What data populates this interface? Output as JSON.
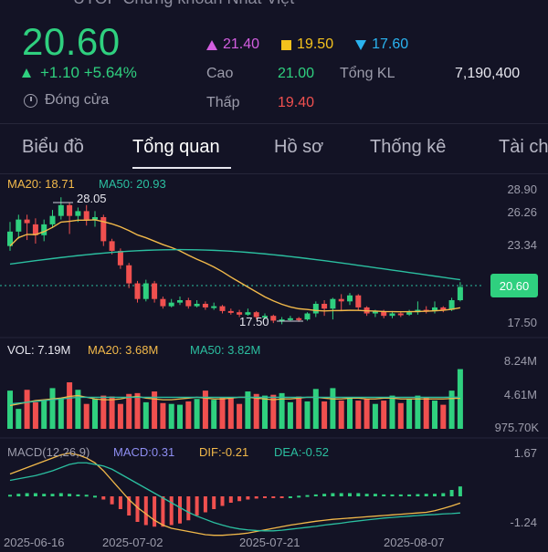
{
  "header": {
    "title_partial": "UTOP Chứng khoán Nhất Việt",
    "price": "20.60",
    "change": "+1.10 +5.64%",
    "status": "Đóng cửa",
    "ceiling": "21.40",
    "reference": "19.50",
    "floor": "17.60",
    "high_label": "Cao",
    "high": "21.00",
    "low_label": "Thấp",
    "low": "19.40",
    "volume_label": "Tổng KL",
    "volume": "7,190,400"
  },
  "tabs": [
    "Biểu đồ",
    "Tổng quan",
    "Hồ sơ",
    "Thống kê",
    "Tài ch"
  ],
  "active_tab": 1,
  "colors": {
    "up": "#2fd07f",
    "down": "#f0504f",
    "ma20": "#f2b94a",
    "ma50": "#2bbfa0",
    "purple": "#d35ee0",
    "yellow": "#f4c21d",
    "blue": "#2ab3f0"
  },
  "chart_data": {
    "type": "candlestick",
    "ma20_label": "MA20: 18.71",
    "ma50_label": "MA50: 20.93",
    "y_ticks": [
      "28.90",
      "26.26",
      "23.34",
      "20.60",
      "17.50"
    ],
    "price_badge": "20.60",
    "max_label": "28.05",
    "min_label": "17.50",
    "candles": [
      {
        "o": 24.0,
        "c": 25.2,
        "h": 26.0,
        "l": 23.6
      },
      {
        "o": 25.2,
        "c": 26.2,
        "h": 26.6,
        "l": 24.6
      },
      {
        "o": 26.2,
        "c": 25.9,
        "h": 26.6,
        "l": 24.5
      },
      {
        "o": 25.8,
        "c": 24.9,
        "h": 26.3,
        "l": 24.2
      },
      {
        "o": 24.9,
        "c": 25.8,
        "h": 26.2,
        "l": 24.4
      },
      {
        "o": 25.8,
        "c": 26.5,
        "h": 27.0,
        "l": 25.5
      },
      {
        "o": 26.5,
        "c": 27.4,
        "h": 28.05,
        "l": 26.2
      },
      {
        "o": 27.4,
        "c": 26.5,
        "h": 27.6,
        "l": 25.0
      },
      {
        "o": 26.5,
        "c": 26.9,
        "h": 27.2,
        "l": 26.0
      },
      {
        "o": 26.9,
        "c": 26.2,
        "h": 27.4,
        "l": 25.7
      },
      {
        "o": 26.2,
        "c": 26.4,
        "h": 26.9,
        "l": 25.6
      },
      {
        "o": 26.4,
        "c": 24.4,
        "h": 26.6,
        "l": 24.0
      },
      {
        "o": 24.4,
        "c": 23.6,
        "h": 24.6,
        "l": 23.3
      },
      {
        "o": 23.6,
        "c": 22.4,
        "h": 23.8,
        "l": 22.1
      },
      {
        "o": 22.4,
        "c": 20.9,
        "h": 22.6,
        "l": 20.5
      },
      {
        "o": 20.9,
        "c": 19.6,
        "h": 21.1,
        "l": 19.3
      },
      {
        "o": 19.6,
        "c": 20.9,
        "h": 21.2,
        "l": 19.4
      },
      {
        "o": 20.9,
        "c": 19.6,
        "h": 21.1,
        "l": 19.3
      },
      {
        "o": 19.6,
        "c": 19.0,
        "h": 19.8,
        "l": 18.8
      },
      {
        "o": 19.0,
        "c": 19.3,
        "h": 19.6,
        "l": 18.9
      },
      {
        "o": 19.3,
        "c": 19.5,
        "h": 19.8,
        "l": 19.1
      },
      {
        "o": 19.5,
        "c": 19.0,
        "h": 19.7,
        "l": 18.8
      },
      {
        "o": 19.0,
        "c": 19.2,
        "h": 19.5,
        "l": 18.9
      },
      {
        "o": 19.2,
        "c": 18.9,
        "h": 19.4,
        "l": 18.7
      },
      {
        "o": 18.9,
        "c": 19.0,
        "h": 19.3,
        "l": 18.7
      },
      {
        "o": 19.0,
        "c": 18.6,
        "h": 19.1,
        "l": 18.4
      },
      {
        "o": 18.6,
        "c": 18.5,
        "h": 18.8,
        "l": 18.3
      },
      {
        "o": 18.5,
        "c": 18.3,
        "h": 18.7,
        "l": 18.1
      },
      {
        "o": 18.3,
        "c": 18.5,
        "h": 18.8,
        "l": 18.2
      },
      {
        "o": 18.5,
        "c": 18.1,
        "h": 18.6,
        "l": 17.9
      },
      {
        "o": 18.1,
        "c": 18.2,
        "h": 18.4,
        "l": 17.9
      },
      {
        "o": 18.2,
        "c": 17.8,
        "h": 18.3,
        "l": 17.6
      },
      {
        "o": 17.8,
        "c": 17.9,
        "h": 18.1,
        "l": 17.5
      },
      {
        "o": 17.9,
        "c": 18.0,
        "h": 18.2,
        "l": 17.8
      },
      {
        "o": 18.0,
        "c": 17.9,
        "h": 18.1,
        "l": 17.7
      },
      {
        "o": 17.9,
        "c": 18.4,
        "h": 18.5,
        "l": 17.8
      },
      {
        "o": 18.4,
        "c": 19.2,
        "h": 19.4,
        "l": 18.1
      },
      {
        "o": 19.2,
        "c": 18.8,
        "h": 19.5,
        "l": 18.2
      },
      {
        "o": 18.8,
        "c": 19.6,
        "h": 19.7,
        "l": 17.9
      },
      {
        "o": 19.6,
        "c": 19.4,
        "h": 20.0,
        "l": 18.6
      },
      {
        "o": 19.4,
        "c": 19.9,
        "h": 20.1,
        "l": 19.1
      },
      {
        "o": 19.9,
        "c": 18.9,
        "h": 20.0,
        "l": 18.7
      },
      {
        "o": 18.9,
        "c": 18.4,
        "h": 19.0,
        "l": 18.2
      },
      {
        "o": 18.4,
        "c": 18.6,
        "h": 18.7,
        "l": 18.1
      },
      {
        "o": 18.6,
        "c": 18.2,
        "h": 18.7,
        "l": 18.0
      },
      {
        "o": 18.2,
        "c": 18.4,
        "h": 18.6,
        "l": 18.0
      },
      {
        "o": 18.4,
        "c": 18.3,
        "h": 18.6,
        "l": 18.1
      },
      {
        "o": 18.3,
        "c": 18.5,
        "h": 18.7,
        "l": 18.2
      },
      {
        "o": 18.5,
        "c": 18.7,
        "h": 19.4,
        "l": 18.3
      },
      {
        "o": 18.7,
        "c": 18.6,
        "h": 19.0,
        "l": 18.4
      },
      {
        "o": 18.6,
        "c": 18.9,
        "h": 19.4,
        "l": 18.4
      },
      {
        "o": 18.9,
        "c": 18.7,
        "h": 19.0,
        "l": 18.5
      },
      {
        "o": 18.7,
        "c": 19.5,
        "h": 19.7,
        "l": 18.6
      },
      {
        "o": 19.5,
        "c": 20.6,
        "h": 21.0,
        "l": 19.4
      }
    ],
    "volume": {
      "label_vol": "VOL: 7.19M",
      "label_ma20": "MA20: 3.68M",
      "label_ma50": "MA50: 3.82M",
      "ticks": [
        "8.24M",
        "4.61M",
        "975.70K"
      ],
      "values": [
        4.6,
        2.4,
        4.7,
        3.2,
        3.5,
        4.9,
        3.6,
        5.6,
        4.7,
        3.0,
        3.6,
        4.0,
        3.9,
        3.0,
        4.2,
        4.3,
        3.2,
        4.5,
        3.1,
        3.0,
        2.9,
        3.3,
        3.6,
        4.6,
        3.5,
        3.8,
        3.8,
        3.0,
        4.5,
        4.2,
        4.0,
        4.1,
        4.3,
        3.2,
        3.9,
        3.3,
        4.8,
        3.3,
        4.9,
        3.4,
        3.7,
        3.4,
        3.6,
        3.0,
        3.4,
        4.0,
        3.1,
        3.6,
        4.0,
        3.8,
        3.4,
        2.9,
        4.6,
        7.19
      ],
      "ma20": [
        2.8,
        3.0,
        3.2,
        3.4,
        3.5,
        3.6,
        3.7,
        3.9,
        4.0,
        3.8,
        3.6,
        3.5,
        3.5,
        3.6,
        3.8,
        3.9,
        3.7,
        3.6,
        3.5,
        3.5,
        3.6,
        3.7,
        3.8,
        3.7,
        3.6,
        3.6,
        3.7,
        3.8,
        3.8,
        3.7,
        3.6,
        3.5,
        3.6,
        3.6,
        3.7,
        3.8,
        3.8,
        3.7,
        3.6,
        3.6,
        3.7,
        3.7,
        3.6,
        3.6,
        3.7,
        3.7,
        3.6,
        3.6,
        3.6,
        3.6,
        3.6,
        3.6,
        3.65,
        3.68
      ],
      "ma50": [
        3.0,
        3.1,
        3.2,
        3.3,
        3.4,
        3.5,
        3.6,
        3.7,
        3.8,
        3.8,
        3.8,
        3.8,
        3.8,
        3.8,
        3.8,
        3.8,
        3.8,
        3.8,
        3.8,
        3.8,
        3.8,
        3.8,
        3.8,
        3.8,
        3.8,
        3.8,
        3.8,
        3.8,
        3.8,
        3.8,
        3.8,
        3.8,
        3.8,
        3.8,
        3.8,
        3.8,
        3.8,
        3.8,
        3.8,
        3.8,
        3.8,
        3.8,
        3.8,
        3.8,
        3.8,
        3.8,
        3.8,
        3.8,
        3.8,
        3.8,
        3.8,
        3.8,
        3.82,
        3.82
      ]
    },
    "macd": {
      "label": "MACD(12,26,9)",
      "label_macd": "MACD:0.31",
      "label_dif": "DIF:-0.21",
      "label_dea": "DEA:-0.52",
      "ticks": [
        "1.67",
        "-1.24"
      ],
      "dates": [
        "2025-06-16",
        "2025-07-02",
        "2025-07-21",
        "2025-08-07"
      ],
      "hist": [
        0.05,
        0.08,
        0.1,
        0.1,
        0.08,
        0.08,
        0.1,
        0.08,
        0.06,
        0.05,
        0.02,
        -0.1,
        -0.25,
        -0.4,
        -0.6,
        -0.8,
        -0.9,
        -0.95,
        -0.95,
        -0.9,
        -0.85,
        -0.75,
        -0.6,
        -0.5,
        -0.4,
        -0.3,
        -0.2,
        -0.15,
        -0.1,
        -0.07,
        -0.05,
        -0.03,
        -0.01,
        0.0,
        0.02,
        0.04,
        0.06,
        0.08,
        0.1,
        0.1,
        0.1,
        0.1,
        0.08,
        0.08,
        0.06,
        0.06,
        0.06,
        0.06,
        0.07,
        0.08,
        0.08,
        0.1,
        0.2,
        0.31
      ],
      "dif": [
        0.7,
        0.8,
        0.9,
        1.0,
        1.1,
        1.2,
        1.3,
        1.35,
        1.3,
        1.2,
        1.05,
        0.8,
        0.5,
        0.2,
        -0.1,
        -0.35,
        -0.55,
        -0.75,
        -0.9,
        -1.0,
        -1.05,
        -1.1,
        -1.15,
        -1.2,
        -1.22,
        -1.22,
        -1.2,
        -1.18,
        -1.15,
        -1.1,
        -1.05,
        -1.0,
        -0.95,
        -0.9,
        -0.86,
        -0.82,
        -0.78,
        -0.75,
        -0.72,
        -0.7,
        -0.68,
        -0.66,
        -0.64,
        -0.62,
        -0.6,
        -0.58,
        -0.56,
        -0.54,
        -0.52,
        -0.5,
        -0.45,
        -0.38,
        -0.3,
        -0.21
      ],
      "dea": [
        0.5,
        0.55,
        0.6,
        0.65,
        0.72,
        0.8,
        0.9,
        1.0,
        1.05,
        1.05,
        1.0,
        0.95,
        0.85,
        0.7,
        0.55,
        0.4,
        0.25,
        0.1,
        -0.05,
        -0.2,
        -0.35,
        -0.5,
        -0.62,
        -0.72,
        -0.82,
        -0.9,
        -0.97,
        -1.02,
        -1.05,
        -1.07,
        -1.08,
        -1.08,
        -1.06,
        -1.03,
        -1.0,
        -0.97,
        -0.94,
        -0.9,
        -0.87,
        -0.84,
        -0.8,
        -0.77,
        -0.74,
        -0.71,
        -0.68,
        -0.66,
        -0.64,
        -0.62,
        -0.6,
        -0.58,
        -0.57,
        -0.55,
        -0.54,
        -0.52
      ]
    }
  }
}
